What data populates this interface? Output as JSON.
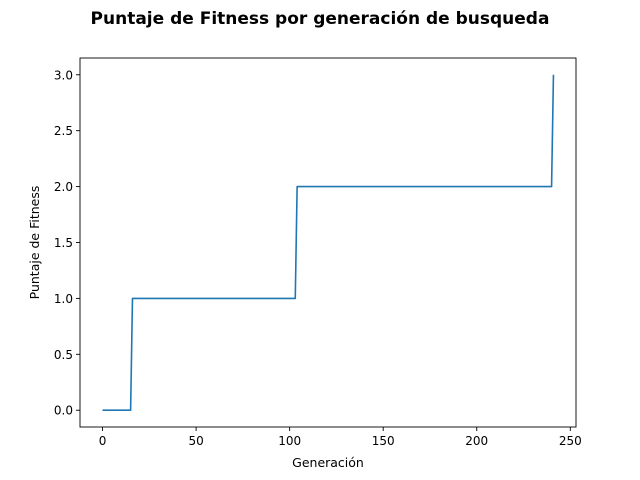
{
  "chart_data": {
    "type": "line",
    "title": "Puntaje de Fitness por generación de busqueda",
    "xlabel": "Generación",
    "ylabel": "Puntaje de Fitness",
    "xlim": [
      -12.05,
      253.05
    ],
    "ylim": [
      -0.15,
      3.15
    ],
    "xticks": [
      0,
      50,
      100,
      150,
      200,
      250
    ],
    "xtick_labels": [
      "0",
      "50",
      "100",
      "150",
      "200",
      "250"
    ],
    "yticks": [
      0.0,
      0.5,
      1.0,
      1.5,
      2.0,
      2.5,
      3.0
    ],
    "ytick_labels": [
      "0.0",
      "0.5",
      "1.0",
      "1.5",
      "2.0",
      "2.5",
      "3.0"
    ],
    "grid": false,
    "legend": "none",
    "series": [
      {
        "color": "#1f77b4",
        "x": [
          0,
          15,
          16,
          103,
          104,
          240,
          241
        ],
        "y": [
          0,
          0,
          1,
          1,
          2,
          2,
          3
        ]
      }
    ]
  }
}
